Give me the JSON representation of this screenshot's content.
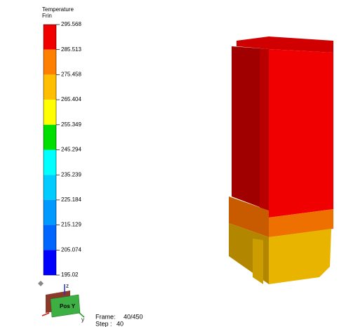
{
  "legend": {
    "title": "Temperature",
    "subtitle": "Frin",
    "labels": [
      "295.568",
      "285.513",
      "275.458",
      "265.404",
      "255.349",
      "245.294",
      "235.239",
      "225.184",
      "215.129",
      "205.074",
      "195.02"
    ],
    "colors": [
      "#f00000",
      "#ff7f00",
      "#ffbf00",
      "#ffff00",
      "#00e000",
      "#00ffff",
      "#00ccff",
      "#0099ff",
      "#0066ff",
      "#0000ff"
    ]
  },
  "view_cube": {
    "face": "Pos Y",
    "axis_z": "z",
    "axis_y": "y"
  },
  "status": {
    "frame_label": "Frame:",
    "frame_value": "40/450",
    "step_label": "Step :",
    "step_value": "40"
  }
}
